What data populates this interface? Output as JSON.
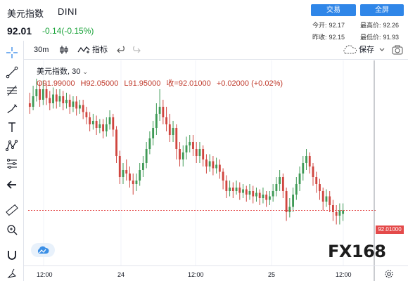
{
  "header": {
    "symbol_name": "美元指数",
    "symbol_code": "DINI",
    "last_price": "92.01",
    "change": "-0.14(-0.15%)",
    "trade_button": "交易",
    "fullscreen_button": "全屏",
    "stats": {
      "open_label": "今开:",
      "open_value": "92.17",
      "high_label": "最高价:",
      "high_value": "92.26",
      "prev_label": "昨收:",
      "prev_value": "92.15",
      "low_label": "最低价:",
      "low_value": "91.93"
    }
  },
  "toolbar": {
    "interval": "30m",
    "indicators": "指标",
    "save": "保存"
  },
  "legend": {
    "title": "美元指数, 30",
    "open": "O91.99000",
    "high": "H92.05000",
    "low": "L91.95000",
    "close": "收=92.01000",
    "change": "+0.02000 (+0.02%)"
  },
  "price_tag": "92.01000",
  "watermark": "FX168",
  "colors": {
    "up": "#3f9a56",
    "down": "#d0453f",
    "accent": "#2f86e8",
    "price_line": "#e44a4a"
  },
  "icons": [
    "crosshair-icon",
    "trendline-icon",
    "fib-icon",
    "brush-icon",
    "text-icon",
    "pattern-icon",
    "measure-icon",
    "back-arrow-icon",
    "ruler-icon",
    "zoom-icon",
    "magnet-icon",
    "lock-icon",
    "cloud-icon",
    "gear-icon"
  ],
  "chart_data": {
    "type": "candlestick",
    "interval": "30m",
    "x_labels": [
      "12:00",
      "24",
      "12:00",
      "25",
      "12:00"
    ],
    "last_close": 92.01,
    "candles": [
      [
        92.62,
        92.6,
        92.68,
        92.56
      ],
      [
        92.6,
        92.66,
        92.72,
        92.58
      ],
      [
        92.66,
        92.7,
        92.76,
        92.63
      ],
      [
        92.7,
        92.64,
        92.74,
        92.6
      ],
      [
        92.64,
        92.7,
        92.75,
        92.61
      ],
      [
        92.7,
        92.65,
        92.73,
        92.61
      ],
      [
        92.65,
        92.62,
        92.69,
        92.58
      ],
      [
        92.62,
        92.67,
        92.71,
        92.59
      ],
      [
        92.67,
        92.63,
        92.7,
        92.59
      ],
      [
        92.63,
        92.66,
        92.7,
        92.6
      ],
      [
        92.66,
        92.62,
        92.69,
        92.58
      ],
      [
        92.62,
        92.64,
        92.68,
        92.59
      ],
      [
        92.64,
        92.6,
        92.67,
        92.56
      ],
      [
        92.6,
        92.63,
        92.66,
        92.57
      ],
      [
        92.63,
        92.59,
        92.66,
        92.55
      ],
      [
        92.59,
        92.61,
        92.64,
        92.56
      ],
      [
        92.61,
        92.57,
        92.64,
        92.53
      ],
      [
        92.57,
        92.54,
        92.6,
        92.5
      ],
      [
        92.54,
        92.5,
        92.57,
        92.46
      ],
      [
        92.5,
        92.52,
        92.56,
        92.47
      ],
      [
        92.52,
        92.48,
        92.55,
        92.44
      ],
      [
        92.48,
        92.5,
        92.53,
        92.45
      ],
      [
        92.5,
        92.46,
        92.53,
        92.42
      ],
      [
        92.46,
        92.5,
        92.54,
        92.43
      ],
      [
        92.5,
        92.54,
        92.58,
        92.47
      ],
      [
        92.54,
        92.47,
        92.56,
        92.43
      ],
      [
        92.47,
        92.32,
        92.49,
        92.28
      ],
      [
        92.32,
        92.2,
        92.35,
        92.16
      ],
      [
        92.2,
        92.24,
        92.28,
        92.16
      ],
      [
        92.24,
        92.22,
        92.3,
        92.18
      ],
      [
        92.22,
        92.18,
        92.26,
        92.14
      ],
      [
        92.18,
        92.16,
        92.22,
        92.1
      ],
      [
        92.16,
        92.18,
        92.22,
        92.12
      ],
      [
        92.18,
        92.24,
        92.28,
        92.15
      ],
      [
        92.24,
        92.28,
        92.32,
        92.2
      ],
      [
        92.28,
        92.36,
        92.4,
        92.25
      ],
      [
        92.36,
        92.42,
        92.46,
        92.33
      ],
      [
        92.42,
        92.48,
        92.52,
        92.38
      ],
      [
        92.48,
        92.56,
        92.62,
        92.44
      ],
      [
        92.56,
        92.6,
        92.7,
        92.52
      ],
      [
        92.6,
        92.54,
        92.64,
        92.5
      ],
      [
        92.54,
        92.5,
        92.6,
        92.46
      ],
      [
        92.5,
        92.44,
        92.56,
        92.4
      ],
      [
        92.44,
        92.48,
        92.52,
        92.4
      ],
      [
        92.48,
        92.36,
        92.5,
        92.3
      ],
      [
        92.36,
        92.3,
        92.4,
        92.26
      ],
      [
        92.3,
        92.34,
        92.38,
        92.26
      ],
      [
        92.34,
        92.38,
        92.43,
        92.3
      ],
      [
        92.38,
        92.4,
        92.44,
        92.34
      ],
      [
        92.4,
        92.36,
        92.44,
        92.32
      ],
      [
        92.36,
        92.32,
        92.4,
        92.28
      ],
      [
        92.32,
        92.36,
        92.4,
        92.28
      ],
      [
        92.36,
        92.3,
        92.38,
        92.26
      ],
      [
        92.3,
        92.26,
        92.33,
        92.22
      ],
      [
        92.26,
        92.29,
        92.33,
        92.23
      ],
      [
        92.29,
        92.25,
        92.32,
        92.21
      ],
      [
        92.25,
        92.27,
        92.31,
        92.22
      ],
      [
        92.27,
        92.23,
        92.3,
        92.19
      ],
      [
        92.23,
        92.18,
        92.25,
        92.13
      ],
      [
        92.18,
        92.12,
        92.21,
        92.08
      ],
      [
        92.12,
        92.14,
        92.18,
        92.09
      ],
      [
        92.14,
        92.12,
        92.17,
        92.08
      ],
      [
        92.12,
        92.14,
        92.18,
        92.1
      ],
      [
        92.14,
        92.11,
        92.17,
        92.07
      ],
      [
        92.11,
        92.13,
        92.16,
        92.08
      ],
      [
        92.13,
        92.1,
        92.15,
        92.06
      ],
      [
        92.1,
        92.12,
        92.16,
        92.07
      ],
      [
        92.12,
        92.09,
        92.15,
        92.05
      ],
      [
        92.09,
        92.11,
        92.14,
        92.06
      ],
      [
        92.11,
        92.08,
        92.13,
        92.04
      ],
      [
        92.08,
        92.1,
        92.14,
        92.05
      ],
      [
        92.1,
        92.07,
        92.12,
        92.03
      ],
      [
        92.07,
        92.09,
        92.12,
        92.04
      ],
      [
        92.09,
        92.12,
        92.16,
        92.06
      ],
      [
        92.12,
        92.16,
        92.2,
        92.09
      ],
      [
        92.16,
        92.2,
        92.24,
        92.12
      ],
      [
        92.2,
        92.12,
        92.22,
        92.08
      ],
      [
        92.12,
        92.0,
        92.14,
        91.95
      ],
      [
        92.0,
        92.03,
        92.08,
        91.97
      ],
      [
        92.03,
        92.1,
        92.14,
        92.0
      ],
      [
        92.1,
        92.16,
        92.2,
        92.07
      ],
      [
        92.16,
        92.22,
        92.26,
        92.12
      ],
      [
        92.22,
        92.28,
        92.32,
        92.18
      ],
      [
        92.28,
        92.32,
        92.36,
        92.24
      ],
      [
        92.32,
        92.26,
        92.34,
        92.22
      ],
      [
        92.26,
        92.2,
        92.28,
        92.15
      ],
      [
        92.2,
        92.16,
        92.23,
        92.11
      ],
      [
        92.16,
        92.12,
        92.19,
        92.07
      ],
      [
        92.12,
        92.06,
        92.14,
        92.01
      ],
      [
        92.06,
        92.09,
        92.13,
        92.03
      ],
      [
        92.09,
        92.04,
        92.12,
        92.0
      ],
      [
        92.04,
        92.0,
        92.07,
        91.95
      ],
      [
        92.0,
        91.98,
        92.04,
        91.93
      ],
      [
        91.98,
        92.01,
        92.05,
        91.93
      ],
      [
        91.99,
        92.01,
        92.05,
        91.95
      ]
    ]
  }
}
